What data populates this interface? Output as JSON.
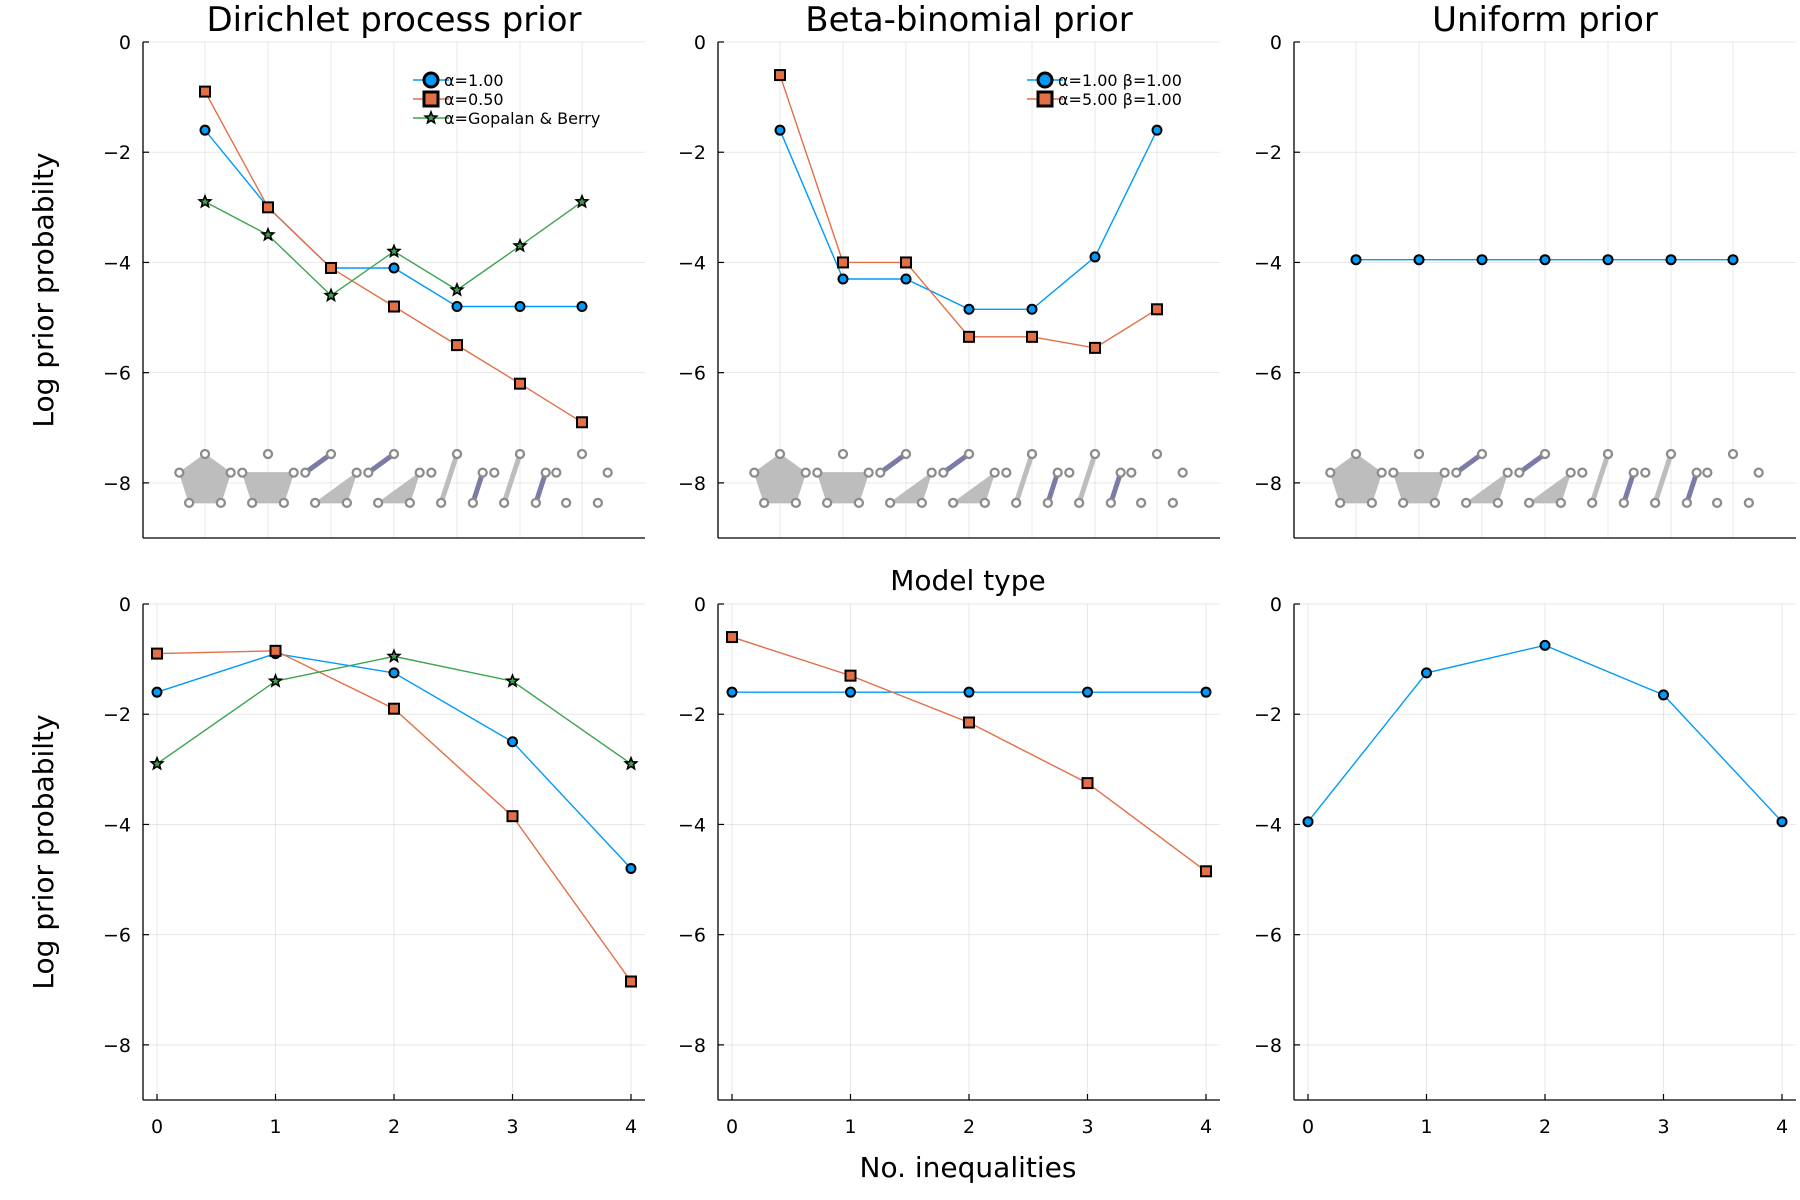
{
  "figure": {
    "xlabel": "No. inequalities",
    "center_label": "Model type",
    "colors": {
      "series1": "#009AFA",
      "series2": "#E26F46",
      "series3": "#3EA44E",
      "partition_fill": "#BDBDBD",
      "partition_node": "#8C8C8C",
      "partition_edge": "#7B7BA8"
    }
  },
  "chart_data": [
    {
      "type": "line",
      "title": "Dirichlet process prior",
      "ylabel": "Log prior probabilty",
      "xlabel": "",
      "ylim": [
        -9,
        0
      ],
      "yticks": [
        0,
        -2,
        -4,
        -6,
        -8
      ],
      "x_categorical": true,
      "categories": [
        "p1",
        "p2",
        "p3",
        "p4",
        "p5",
        "p6",
        "p7"
      ],
      "partition_glyphs": [
        "pentagon",
        "square-1",
        "tri-edge",
        "tri-edge",
        "edge-2",
        "edge-2",
        "empty"
      ],
      "legend": "top-right",
      "series": [
        {
          "name": "α=1.00",
          "marker": "circle",
          "values": [
            -1.6,
            -3.0,
            -4.1,
            -4.1,
            -4.8,
            -4.8,
            -4.8
          ]
        },
        {
          "name": "α=0.50",
          "marker": "square",
          "values": [
            -0.9,
            -3.0,
            -4.1,
            -4.8,
            -5.5,
            -6.2,
            -6.9
          ]
        },
        {
          "name": "α=Gopalan & Berry",
          "marker": "star",
          "values": [
            -2.9,
            -3.5,
            -4.6,
            -3.8,
            -4.5,
            -3.7,
            -2.9
          ]
        }
      ]
    },
    {
      "type": "line",
      "title": "Beta-binomial prior",
      "ylabel": "",
      "xlabel": "",
      "ylim": [
        -9,
        0
      ],
      "yticks": [
        0,
        -2,
        -4,
        -6,
        -8
      ],
      "x_categorical": true,
      "categories": [
        "p1",
        "p2",
        "p3",
        "p4",
        "p5",
        "p6",
        "p7"
      ],
      "partition_glyphs": [
        "pentagon",
        "square-1",
        "tri-edge",
        "tri-edge",
        "edge-2",
        "edge-2",
        "empty"
      ],
      "legend": "top-right",
      "series": [
        {
          "name": "α=1.00 β=1.00",
          "marker": "circle",
          "values": [
            -1.6,
            -4.3,
            -4.3,
            -4.85,
            -4.85,
            -3.9,
            -1.6
          ]
        },
        {
          "name": "α=5.00 β=1.00",
          "marker": "square",
          "values": [
            -0.6,
            -4.0,
            -4.0,
            -5.35,
            -5.35,
            -5.55,
            -4.85
          ]
        }
      ]
    },
    {
      "type": "line",
      "title": "Uniform prior",
      "ylabel": "",
      "xlabel": "",
      "ylim": [
        -9,
        0
      ],
      "yticks": [
        0,
        -2,
        -4,
        -6,
        -8
      ],
      "x_categorical": true,
      "categories": [
        "p1",
        "p2",
        "p3",
        "p4",
        "p5",
        "p6",
        "p7"
      ],
      "partition_glyphs": [
        "pentagon",
        "square-1",
        "tri-edge",
        "tri-edge",
        "edge-2",
        "edge-2",
        "empty"
      ],
      "legend": "none",
      "series": [
        {
          "marker": "circle",
          "values": [
            -3.95,
            -3.95,
            -3.95,
            -3.95,
            -3.95,
            -3.95,
            -3.95
          ]
        }
      ]
    },
    {
      "type": "line",
      "title": "",
      "ylabel": "Log prior probabilty",
      "xlabel": "",
      "ylim": [
        -9,
        0
      ],
      "yticks": [
        0,
        -2,
        -4,
        -6,
        -8
      ],
      "x": [
        0,
        1,
        2,
        3,
        4
      ],
      "xticks": [
        0,
        1,
        2,
        3,
        4
      ],
      "legend": "none",
      "series": [
        {
          "marker": "circle",
          "values": [
            -1.6,
            -0.9,
            -1.25,
            -2.5,
            -4.8
          ]
        },
        {
          "marker": "square",
          "values": [
            -0.9,
            -0.85,
            -1.9,
            -3.85,
            -6.85
          ]
        },
        {
          "marker": "star",
          "values": [
            -2.9,
            -1.4,
            -0.95,
            -1.4,
            -2.9
          ]
        }
      ]
    },
    {
      "type": "line",
      "title": "",
      "ylabel": "",
      "xlabel": "",
      "ylim": [
        -9,
        0
      ],
      "yticks": [
        0,
        -2,
        -4,
        -6,
        -8
      ],
      "x": [
        0,
        1,
        2,
        3,
        4
      ],
      "xticks": [
        0,
        1,
        2,
        3,
        4
      ],
      "legend": "none",
      "series": [
        {
          "marker": "circle",
          "values": [
            -1.6,
            -1.6,
            -1.6,
            -1.6,
            -1.6
          ]
        },
        {
          "marker": "square",
          "values": [
            -0.6,
            -1.3,
            -2.15,
            -3.25,
            -4.85
          ]
        }
      ]
    },
    {
      "type": "line",
      "title": "",
      "ylabel": "",
      "xlabel": "",
      "ylim": [
        -9,
        0
      ],
      "yticks": [
        0,
        -2,
        -4,
        -6,
        -8
      ],
      "x": [
        0,
        1,
        2,
        3,
        4
      ],
      "xticks": [
        0,
        1,
        2,
        3,
        4
      ],
      "legend": "none",
      "series": [
        {
          "marker": "circle",
          "values": [
            -3.95,
            -1.25,
            -0.75,
            -1.65,
            -3.95
          ]
        }
      ]
    }
  ]
}
